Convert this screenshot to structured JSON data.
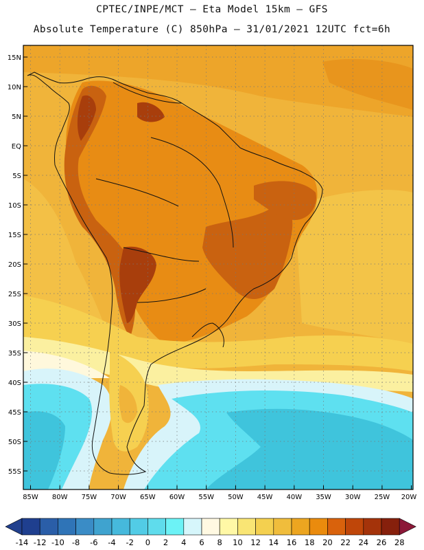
{
  "title_line1": "CPTEC/INPE/MCT –  Eta Model 15km – GFS",
  "title_line2": "Absolute Temperature (C) 850hPa – 31/01/2021 12UTC fct=6h",
  "lat_labels": [
    "15N",
    "10N",
    "5N",
    "EQ",
    "5S",
    "10S",
    "15S",
    "20S",
    "25S",
    "30S",
    "35S",
    "40S",
    "45S",
    "50S",
    "55S"
  ],
  "lon_labels": [
    "85W",
    "80W",
    "75W",
    "70W",
    "65W",
    "60W",
    "55W",
    "50W",
    "45W",
    "40W",
    "35W",
    "30W",
    "25W",
    "20W"
  ],
  "colorbar": {
    "ticks": [
      "-14",
      "-12",
      "-10",
      "-8",
      "-6",
      "-4",
      "-2",
      "0",
      "2",
      "4",
      "6",
      "8",
      "10",
      "12",
      "14",
      "16",
      "18",
      "20",
      "22",
      "24",
      "26",
      "28"
    ],
    "colors": [
      "#1f3f8f",
      "#2a5ea8",
      "#2f74b7",
      "#3a8cc6",
      "#3fa3cf",
      "#46b9dc",
      "#52cce6",
      "#5fdcec",
      "#6cf2f6",
      "#d6f6fb",
      "#fff9e2",
      "#fff8a6",
      "#f9e574",
      "#f4d04f",
      "#f0bd3c",
      "#eca520",
      "#ea8b0d",
      "#d9620c",
      "#bf4609",
      "#a4330a",
      "#86200c"
    ],
    "left_arrow": "#21408e",
    "right_arrow": "#8c1838"
  },
  "map_colors": {
    "background": "#f0b43a",
    "warm": "#e88c14",
    "hot": "#c96210",
    "hottest": "#a83e0c",
    "mild": "#f6d050",
    "cool": "#fbf0a0",
    "cream": "#fff8dc",
    "pale_cyan": "#d8f4fa",
    "cyan": "#5ee0f0",
    "deep_cyan": "#3fc4dc"
  }
}
